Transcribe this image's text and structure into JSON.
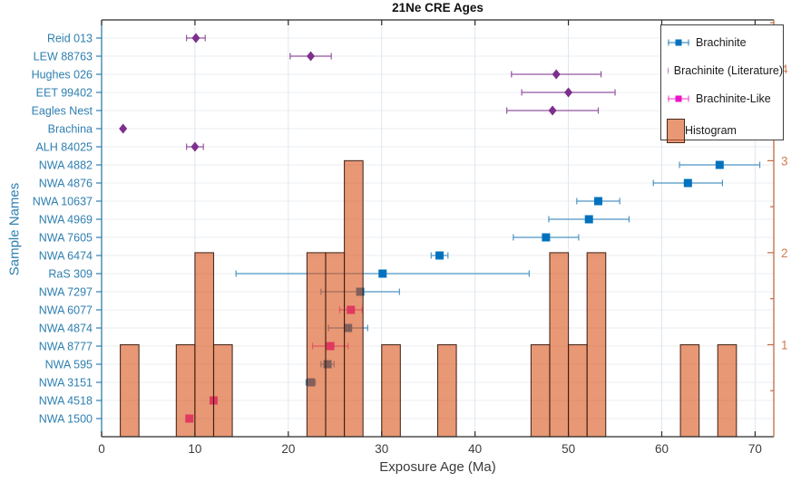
{
  "title": "21Ne CRE Ages",
  "x_axis": {
    "label": "Exposure Age (Ma)",
    "ticks": [
      0,
      10,
      20,
      30,
      40,
      50,
      60,
      70
    ]
  },
  "y_axis_left": {
    "label": "Sample Names"
  },
  "y_axis_right": {
    "ticks": [
      1,
      2,
      3,
      4
    ],
    "minor_step": 0.5
  },
  "legend": {
    "items": [
      {
        "label": "Brachinite",
        "series": "brachinite"
      },
      {
        "label": "Brachinite (Literature)",
        "series": "literature"
      },
      {
        "label": "Brachinite-Like",
        "series": "brachinite_like"
      },
      {
        "label": "Histogram",
        "series": "histogram"
      }
    ]
  },
  "colors": {
    "title": "#111111",
    "axis_dark": "#2b2b2b",
    "axis_left": "#2E7FB0",
    "axis_right": "#C06A45",
    "right_label": "#D07B52",
    "tick_label": "#3c3c3c",
    "grid_h": "#ebedf1",
    "grid_v": "#dde7f0",
    "hist_face_hex": "#D95319",
    "hist_face": "rgba(217,83,25,0.6)",
    "hist_edge": "rgba(58,28,15,0.9)"
  },
  "chart_data": {
    "type": "scatter",
    "title": "21Ne CRE Ages",
    "xlabel": "Exposure Age (Ma)",
    "ylabel": "Sample Names",
    "xlim": [
      0,
      72
    ],
    "grid": true,
    "legend_position": "northeast",
    "series": {
      "brachinite": {
        "label": "Brachinite",
        "marker": "square",
        "color": "#0072BD",
        "line_color": "#4E94C3"
      },
      "literature": {
        "label": "Brachinite (Literature)",
        "marker": "diamond",
        "color": "#7E2F8E",
        "line_color": "#95559F"
      },
      "brachinite_like": {
        "label": "Brachinite-Like",
        "marker": "square",
        "color": "#EC13C8",
        "line_color": "#F259D3"
      }
    },
    "samples": [
      {
        "name": "Reid 013",
        "series": "literature",
        "age": 10.1,
        "err": 1.0
      },
      {
        "name": "LEW 88763",
        "series": "literature",
        "age": 22.4,
        "err": 2.2
      },
      {
        "name": "Hughes 026",
        "series": "literature",
        "age": 48.7,
        "err": 4.8
      },
      {
        "name": "EET 99402",
        "series": "literature",
        "age": 50.0,
        "err": 5.0
      },
      {
        "name": "Eagles Nest",
        "series": "literature",
        "age": 48.3,
        "err": 4.9
      },
      {
        "name": "Brachina",
        "series": "literature",
        "age": 2.3,
        "err": 0
      },
      {
        "name": "ALH 84025",
        "series": "literature",
        "age": 10.0,
        "err": 0.9
      },
      {
        "name": "NWA 4882",
        "series": "brachinite",
        "age": 66.2,
        "err": 4.3
      },
      {
        "name": "NWA 4876",
        "series": "brachinite",
        "age": 62.8,
        "err": 3.7
      },
      {
        "name": "NWA 10637",
        "series": "brachinite",
        "age": 53.2,
        "err": 2.3
      },
      {
        "name": "NWA 4969",
        "series": "brachinite",
        "age": 52.2,
        "err": 4.3
      },
      {
        "name": "NWA 7605",
        "series": "brachinite",
        "age": 47.6,
        "err": 3.5
      },
      {
        "name": "NWA 6474",
        "series": "brachinite",
        "age": 36.2,
        "err": 0.9
      },
      {
        "name": "RaS 309",
        "series": "brachinite",
        "age": 30.1,
        "err": 15.7
      },
      {
        "name": "NWA 7297",
        "series": "brachinite",
        "age": 27.7,
        "err": 4.2
      },
      {
        "name": "NWA 6077",
        "series": "brachinite_like",
        "age": 26.7,
        "err": 1.2
      },
      {
        "name": "NWA 4874",
        "series": "brachinite",
        "age": 26.4,
        "err": 2.1
      },
      {
        "name": "NWA 8777",
        "series": "brachinite_like",
        "age": 24.5,
        "err": 1.9
      },
      {
        "name": "NWA 595",
        "series": "brachinite",
        "age": 24.2,
        "err": 0.7
      },
      {
        "name": "NWA 3151",
        "series": "brachinite",
        "age": 22.4,
        "err": 0.5
      },
      {
        "name": "NWA 4518",
        "series": "brachinite_like",
        "age": 12.0,
        "err": 0
      },
      {
        "name": "NWA 1500",
        "series": "brachinite_like",
        "age": 9.4,
        "err": 0
      }
    ],
    "histogram": {
      "type": "bar",
      "bin_width": 2,
      "right_ylim": [
        0,
        4.53
      ],
      "right_ticks": [
        1,
        2,
        3,
        4
      ],
      "bins": [
        {
          "start": 2,
          "count": 1
        },
        {
          "start": 8,
          "count": 1
        },
        {
          "start": 10,
          "count": 2
        },
        {
          "start": 12,
          "count": 1
        },
        {
          "start": 22,
          "count": 2
        },
        {
          "start": 24,
          "count": 2
        },
        {
          "start": 26,
          "count": 3
        },
        {
          "start": 30,
          "count": 1
        },
        {
          "start": 36,
          "count": 1
        },
        {
          "start": 46,
          "count": 1
        },
        {
          "start": 48,
          "count": 2
        },
        {
          "start": 50,
          "count": 1
        },
        {
          "start": 52,
          "count": 2
        },
        {
          "start": 62,
          "count": 1
        },
        {
          "start": 66,
          "count": 1
        }
      ]
    }
  }
}
